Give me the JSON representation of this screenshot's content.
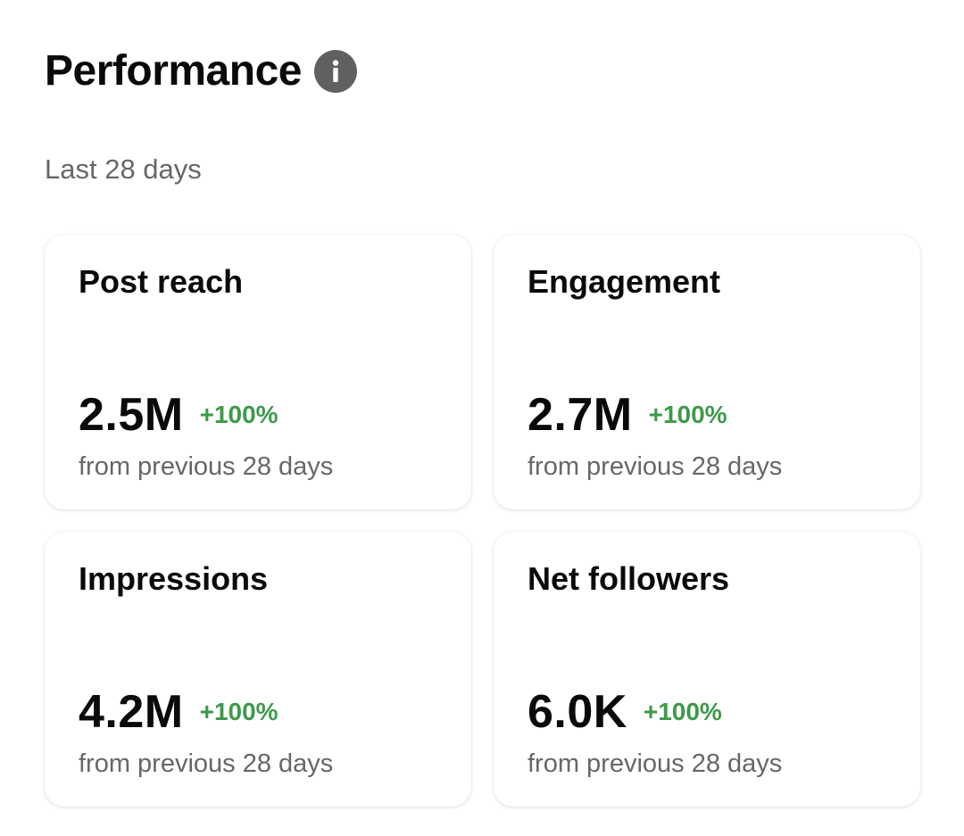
{
  "header": {
    "title": "Performance",
    "info_icon": "info-icon"
  },
  "subtitle": "Last 28 days",
  "colors": {
    "positive": "#3d9a4a",
    "muted_text": "#65676b",
    "icon_bg": "#5f6062"
  },
  "cards": [
    {
      "title": "Post reach",
      "value": "2.5M",
      "change": "+100%",
      "caption": "from previous 28 days"
    },
    {
      "title": "Engagement",
      "value": "2.7M",
      "change": "+100%",
      "caption": "from previous 28 days"
    },
    {
      "title": "Impressions",
      "value": "4.2M",
      "change": "+100%",
      "caption": "from previous 28 days"
    },
    {
      "title": "Net followers",
      "value": "6.0K",
      "change": "+100%",
      "caption": "from previous 28 days"
    }
  ]
}
